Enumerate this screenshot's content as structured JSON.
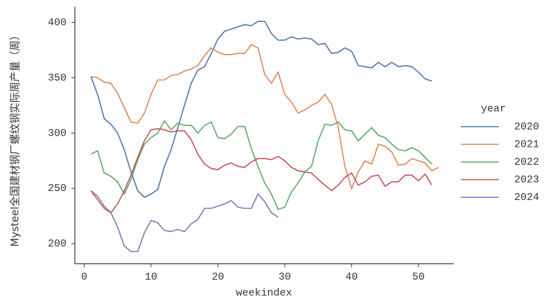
{
  "chart_data": {
    "type": "line",
    "x_label": "weekindex",
    "y_label": "Mysteel全国建材钢厂螺纹钢实际周产量（周）",
    "legend_title": "year",
    "legend_position": "right",
    "grid": false,
    "x": [
      1,
      2,
      3,
      4,
      5,
      6,
      7,
      8,
      9,
      10,
      11,
      12,
      13,
      14,
      15,
      16,
      17,
      18,
      19,
      20,
      21,
      22,
      23,
      24,
      25,
      26,
      27,
      28,
      29,
      30,
      31,
      32,
      33,
      34,
      35,
      36,
      37,
      38,
      39,
      40,
      41,
      42,
      43,
      44,
      45,
      46,
      47,
      48,
      49,
      50,
      51,
      52,
      53
    ],
    "xlim": [
      -1.4,
      55.3
    ],
    "xticks": [
      0,
      10,
      20,
      30,
      40,
      50
    ],
    "ylim": [
      182,
      414
    ],
    "yticks": [
      200,
      250,
      300,
      350,
      400
    ],
    "series": [
      {
        "name": "2020",
        "color": "#4c72b0",
        "values": [
          351,
          335,
          313,
          308,
          300,
          285,
          265,
          248,
          242,
          245,
          249,
          270,
          285,
          305,
          325,
          345,
          357,
          360,
          372,
          385,
          392,
          394,
          396,
          398,
          397,
          401,
          401,
          390,
          384,
          384,
          387,
          385,
          386,
          385,
          380,
          381,
          372,
          373,
          377,
          374,
          361,
          360,
          359,
          364,
          360,
          364,
          360,
          361,
          360,
          355,
          349,
          347,
          null
        ]
      },
      {
        "name": "2021",
        "color": "#dd8452",
        "values": [
          351,
          350,
          346,
          345,
          336,
          323,
          310,
          309,
          318,
          335,
          348,
          348,
          352,
          353,
          356,
          358,
          361,
          370,
          377,
          373,
          371,
          371,
          372,
          372,
          380,
          377,
          353,
          345,
          355,
          335,
          328,
          318,
          321,
          325,
          328,
          335,
          326,
          305,
          270,
          250,
          265,
          275,
          272,
          290,
          288,
          283,
          271,
          272,
          277,
          275,
          273,
          266,
          269
        ]
      },
      {
        "name": "2022",
        "color": "#55a868",
        "values": [
          281,
          284,
          264,
          261,
          256,
          245,
          258,
          276,
          290,
          296,
          300,
          311,
          303,
          309,
          307,
          307,
          300,
          307,
          310,
          296,
          295,
          299,
          306,
          306,
          286,
          270,
          255,
          245,
          231,
          233,
          247,
          255,
          265,
          270,
          293,
          308,
          307,
          310,
          303,
          302,
          293,
          299,
          305,
          298,
          296,
          290,
          285,
          284,
          287,
          284,
          278,
          272,
          null
        ]
      },
      {
        "name": "2023",
        "color": "#c44e52",
        "values": [
          248,
          240,
          232,
          228,
          236,
          248,
          262,
          278,
          293,
          303,
          304,
          303,
          301,
          302,
          302,
          294,
          281,
          272,
          268,
          267,
          271,
          273,
          270,
          269,
          274,
          277,
          277,
          276,
          279,
          275,
          269,
          266,
          265,
          264,
          258,
          253,
          248,
          253,
          260,
          264,
          253,
          256,
          261,
          262,
          252,
          256,
          256,
          262,
          262,
          257,
          263,
          253,
          null
        ]
      },
      {
        "name": "2024",
        "color": "#8172b3",
        "values": [
          248,
          243,
          234,
          228,
          215,
          198,
          193,
          193,
          210,
          221,
          219,
          212,
          211,
          213,
          211,
          218,
          222,
          232,
          232,
          234,
          236,
          239,
          233,
          232,
          232,
          245,
          238,
          228,
          224,
          null,
          null,
          null,
          null,
          null,
          null,
          null,
          null,
          null,
          null,
          null,
          null,
          null,
          null,
          null,
          null,
          null,
          null,
          null,
          null,
          null,
          null,
          null,
          null
        ]
      }
    ]
  }
}
